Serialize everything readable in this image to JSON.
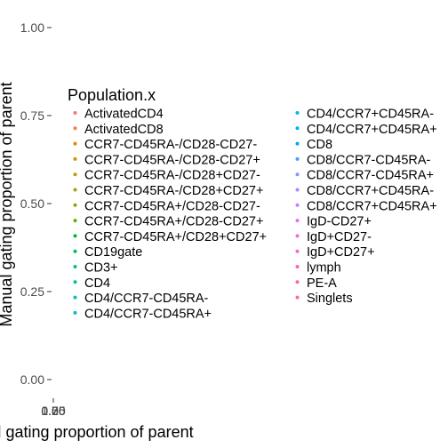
{
  "chart_data": {
    "type": "scatter",
    "title": "",
    "xlabel": "Automated gating proportion of parent",
    "ylabel": "Manual gating proportion of parent",
    "ylim": [
      0,
      1
    ],
    "y_ticks": [
      "0.00",
      "0.25",
      "0.50",
      "0.75",
      "1.00"
    ],
    "x_ticks": [
      "0.00",
      "0.25",
      "0.50",
      "0.75",
      "1.00"
    ],
    "grid": false,
    "legend": {
      "title": "Population.x",
      "placement": "inside-plot",
      "entries": [
        {
          "label": "ActivatedCD4",
          "color": "#F8766D"
        },
        {
          "label": "ActivatedCD8",
          "color": "#F07E4B"
        },
        {
          "label": "CCR7-CD45RA-/CD28-CD27-",
          "color": "#E58700"
        },
        {
          "label": "CCR7-CD45RA-/CD28-CD27+",
          "color": "#D59000"
        },
        {
          "label": "CCR7-CD45RA-/CD28+CD27-",
          "color": "#C09B00"
        },
        {
          "label": "CCR7-CD45RA-/CD28+CD27+",
          "color": "#A6A400"
        },
        {
          "label": "CCR7-CD45RA+/CD28-CD27-",
          "color": "#86AC00"
        },
        {
          "label": "CCR7-CD45RA+/CD28-CD27+",
          "color": "#5BB300"
        },
        {
          "label": "CCR7-CD45RA+/CD28+CD27+",
          "color": "#00B81F"
        },
        {
          "label": "CD19gate",
          "color": "#00BC59"
        },
        {
          "label": "CD3+",
          "color": "#00BF7D"
        },
        {
          "label": "CD4",
          "color": "#00C19C"
        },
        {
          "label": "CD4/CCR7-CD45RA-",
          "color": "#00C0B8"
        },
        {
          "label": "CD4/CCR7-CD45RA+",
          "color": "#00BDD0"
        },
        {
          "label": "CD4/CCR7+CD45RA-",
          "color": "#00B8E5"
        },
        {
          "label": "CD4/CCR7+CD45RA+",
          "color": "#00B0F6"
        },
        {
          "label": "CD8",
          "color": "#00A5FF"
        },
        {
          "label": "CD8/CCR7-CD45RA-",
          "color": "#4B9BFF"
        },
        {
          "label": "CD8/CCR7-CD45RA+",
          "color": "#8D92FF"
        },
        {
          "label": "CD8/CCR7+CD45RA-",
          "color": "#B086FF"
        },
        {
          "label": "CD8/CCR7+CD45RA+",
          "color": "#CB7BFF"
        },
        {
          "label": "IgD-CD27+",
          "color": "#E070F8"
        },
        {
          "label": "IgD+CD27-",
          "color": "#EF67EB"
        },
        {
          "label": "IgD+CD27+",
          "color": "#F962DA"
        },
        {
          "label": "lymph",
          "color": "#FF62BC"
        },
        {
          "label": "PE-A",
          "color": "#FF65A6"
        },
        {
          "label": "Singlets",
          "color": "#FF6A8D"
        }
      ]
    },
    "series": []
  }
}
